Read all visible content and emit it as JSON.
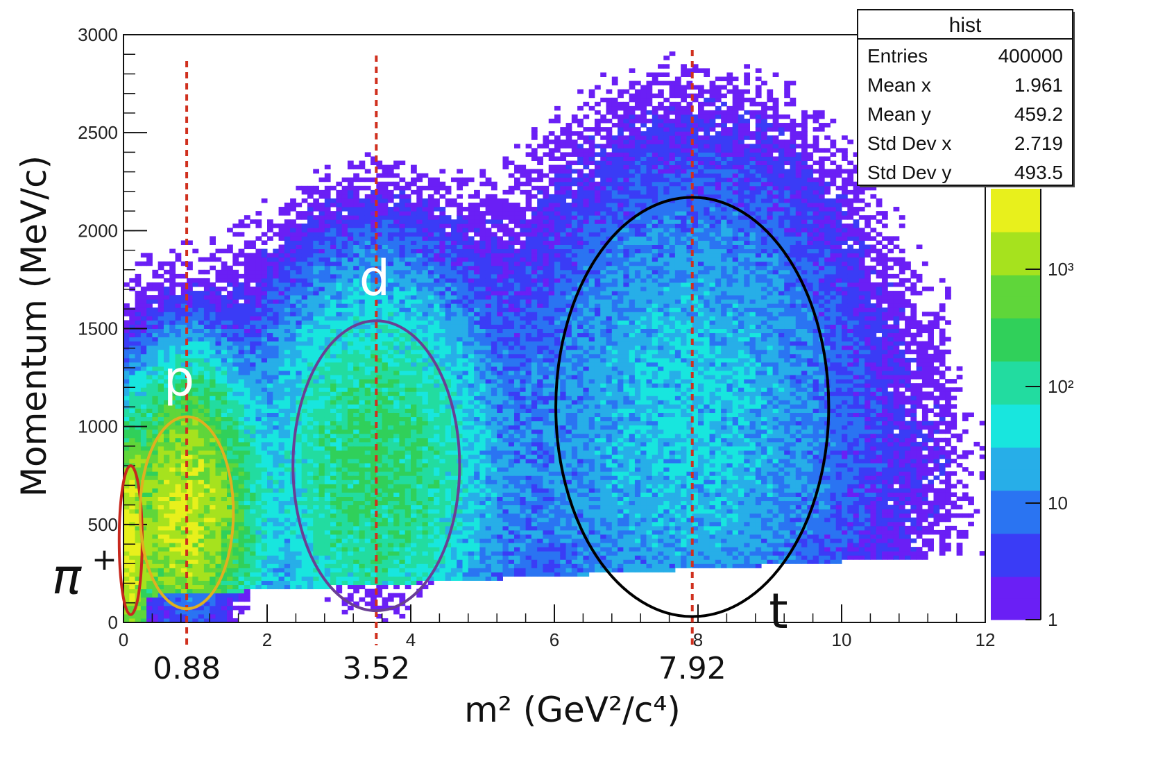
{
  "chart_data": {
    "type": "heatmap",
    "title": "",
    "xlabel": "m² (GeV²/c⁴)",
    "ylabel": "Momentum (MeV/c)",
    "xlim": [
      0,
      12
    ],
    "ylim": [
      0,
      3000
    ],
    "x_ticks": [
      "0",
      "2",
      "4",
      "6",
      "8",
      "10",
      "12"
    ],
    "y_ticks": [
      "0",
      "500",
      "1000",
      "1500",
      "2000",
      "2500",
      "3000"
    ],
    "z_scale": "log",
    "colorbar_ticks": [
      "1",
      "10",
      "10²",
      "10³"
    ],
    "colormap": [
      "#6a1ff5",
      "#3a3cf6",
      "#2a74f2",
      "#27aee8",
      "#18e6de",
      "#22dca0",
      "#30d05a",
      "#5fd63a",
      "#a6e21e",
      "#e8f01c"
    ],
    "grid": false,
    "stats_box": {
      "title": "hist",
      "rows": [
        {
          "label": "Entries",
          "value": "400000"
        },
        {
          "label": "Mean x",
          "value": "1.961"
        },
        {
          "label": "Mean y",
          "value": "459.2"
        },
        {
          "label": "Std Dev x",
          "value": "2.719"
        },
        {
          "label": "Std Dev y",
          "value": "493.5"
        }
      ],
      "placement": "top-right"
    },
    "reference_lines": [
      {
        "x": 0.88,
        "label": "0.88"
      },
      {
        "x": 3.52,
        "label": "3.52"
      },
      {
        "x": 7.92,
        "label": "7.92"
      }
    ],
    "populations": [
      {
        "label": "π",
        "superscript": "+",
        "cx": 0.1,
        "cy": 420,
        "rx": 0.16,
        "ry": 380,
        "peak_density": 1500,
        "color": "#c8281e"
      },
      {
        "label": "p",
        "superscript": "",
        "cx": 0.88,
        "cy": 560,
        "rx": 0.65,
        "ry": 490,
        "peak_density": 1000,
        "color": "#e0b020"
      },
      {
        "label": "d",
        "superscript": "",
        "cx": 3.52,
        "cy": 800,
        "rx": 1.16,
        "ry": 740,
        "peak_density": 120,
        "color": "#6a3f94"
      },
      {
        "label": "t",
        "superscript": "",
        "cx": 7.92,
        "cy": 1100,
        "rx": 1.9,
        "ry": 1070,
        "peak_density": 20,
        "color": "#000000"
      }
    ]
  }
}
